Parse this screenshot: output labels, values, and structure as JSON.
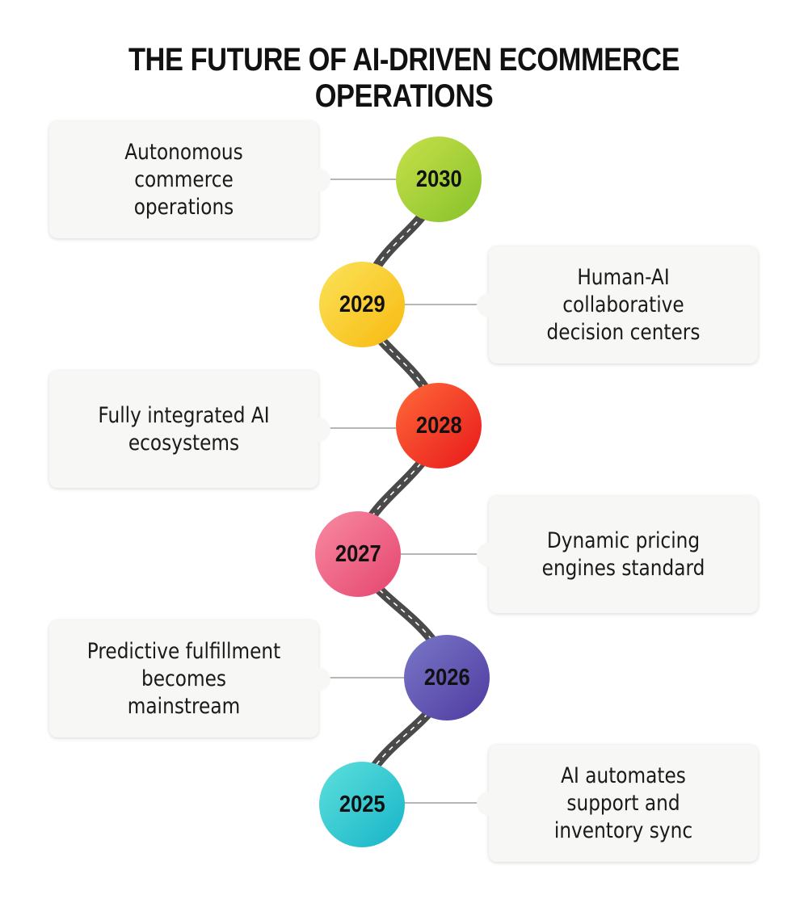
{
  "title": "THE FUTURE OF AI-DRIVEN ECOMMERCE OPERATIONS",
  "milestones": [
    {
      "year": "2030",
      "text": "Autonomous commerce operations",
      "color_from": "#c8e04a",
      "color_to": "#86c22a"
    },
    {
      "year": "2029",
      "text": "Human-AI collaborative decision centers",
      "color_from": "#fbe35a",
      "color_to": "#f8b90f"
    },
    {
      "year": "2028",
      "text": "Fully integrated AI ecosystems",
      "color_from": "#ff6a3a",
      "color_to": "#e8181a"
    },
    {
      "year": "2027",
      "text": "Dynamic pricing engines standard",
      "color_from": "#f88aa2",
      "color_to": "#e5456e"
    },
    {
      "year": "2026",
      "text": "Predictive fulfillment becomes mainstream",
      "color_from": "#7a78c8",
      "color_to": "#4e3aa0"
    },
    {
      "year": "2025",
      "text": "AI automates support and inventory sync",
      "color_from": "#5ee0dc",
      "color_to": "#16b4c8"
    }
  ]
}
